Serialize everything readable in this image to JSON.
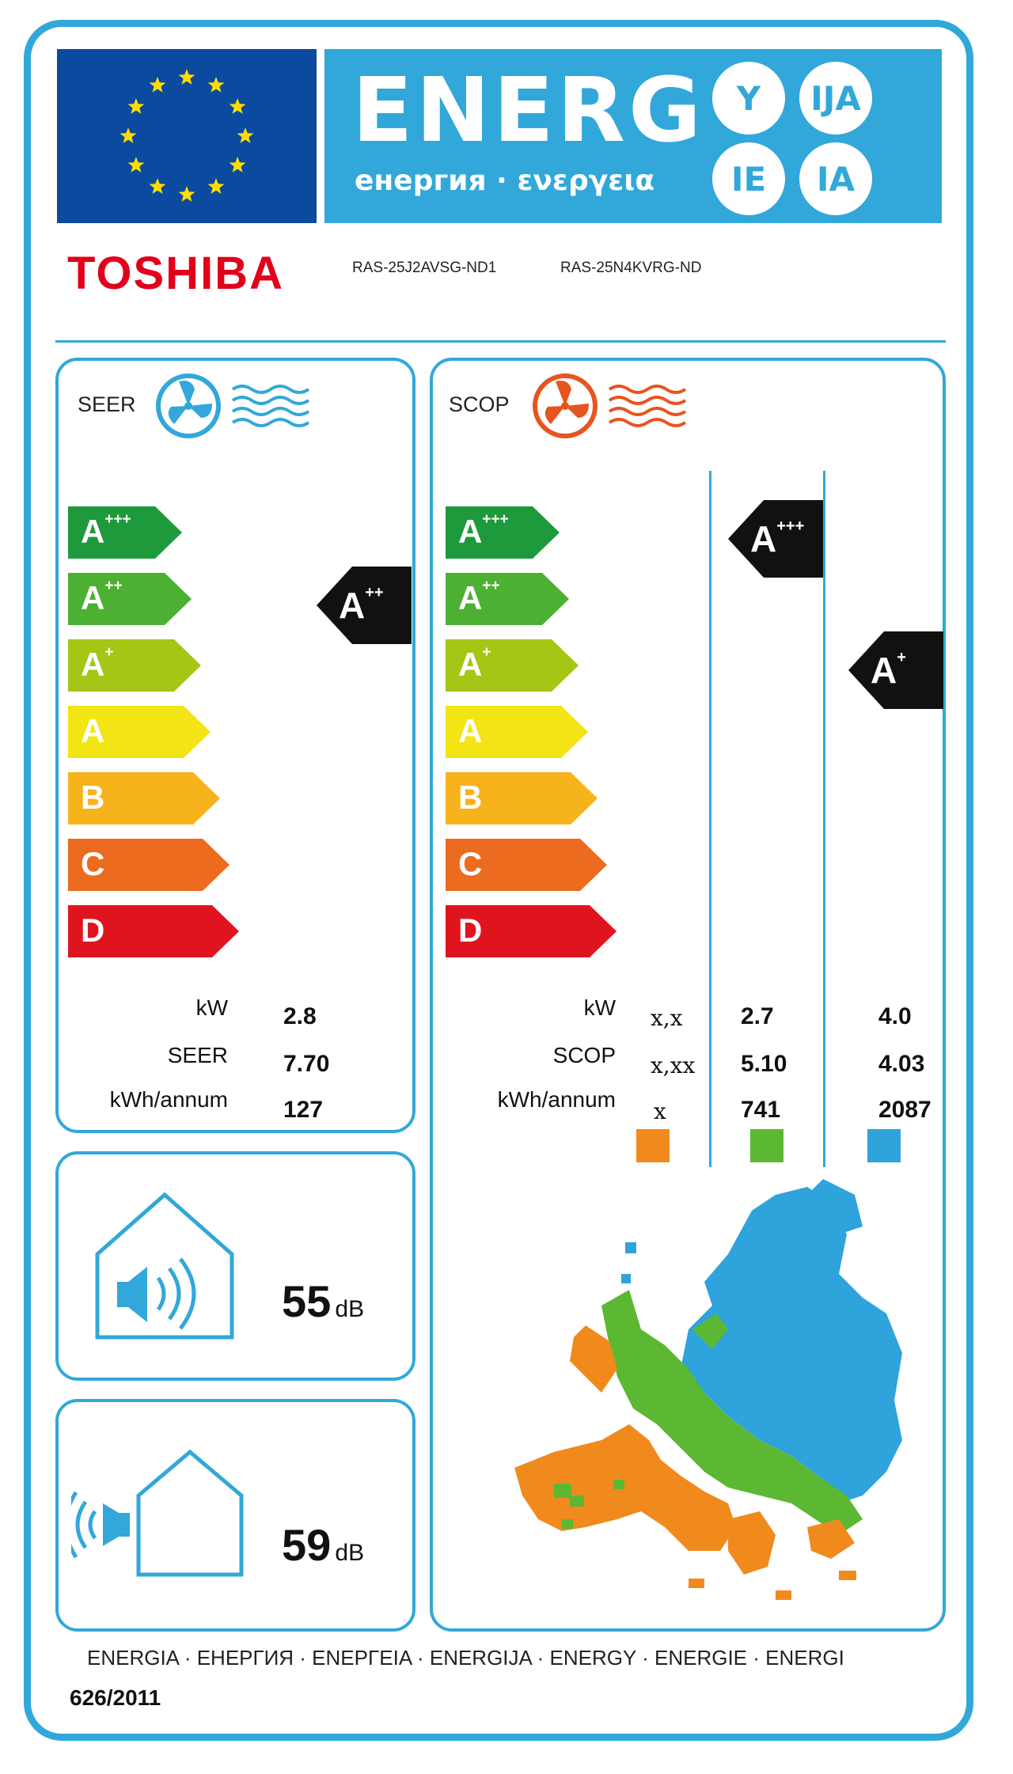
{
  "header": {
    "energy_word": "ENERG",
    "energy_sub": "енергия · ενεργεια",
    "suffixes": [
      "Y",
      "IJA",
      "IE",
      "IA"
    ],
    "eu_flag_color": "#0b4a9e",
    "banner_color": "#31a8d9"
  },
  "supplier": {
    "brand": "TOSHIBA",
    "model_indoor": "RAS-25J2AVSG-ND1",
    "model_outdoor": "RAS-25N4KVRG-ND"
  },
  "scale": [
    {
      "letter": "A",
      "plus": "+++",
      "color": "#1e9a3c"
    },
    {
      "letter": "A",
      "plus": "++",
      "color": "#4cb033"
    },
    {
      "letter": "A",
      "plus": "+",
      "color": "#a4c615"
    },
    {
      "letter": "A",
      "plus": "",
      "color": "#f2e415"
    },
    {
      "letter": "B",
      "plus": "",
      "color": "#f7b31b"
    },
    {
      "letter": "C",
      "plus": "",
      "color": "#ec6b1f"
    },
    {
      "letter": "D",
      "plus": "",
      "color": "#e0141e"
    }
  ],
  "seer": {
    "label": "SEER",
    "class_letter": "A",
    "class_plus": "++",
    "rows": [
      {
        "label": "kW",
        "value": "2.8"
      },
      {
        "label": "SEER",
        "value": "7.70"
      },
      {
        "label": "kWh/annum",
        "value": "127"
      }
    ]
  },
  "scop": {
    "label": "SCOP",
    "average_class": {
      "letter": "A",
      "plus": "+++"
    },
    "colder_class": {
      "letter": "A",
      "plus": "+"
    },
    "rows": [
      {
        "label": "kW",
        "warmer": "x,x",
        "average": "2.7",
        "colder": "4.0"
      },
      {
        "label": "SCOP",
        "warmer": "x,xx",
        "average": "5.10",
        "colder": "4.03"
      },
      {
        "label": "kWh/annum",
        "warmer": "x",
        "average": "741",
        "colder": "2087"
      }
    ],
    "zone_colors": [
      "#f08a1c",
      "#5cb833",
      "#2ea3dc"
    ]
  },
  "noise": {
    "indoor_value": "55",
    "outdoor_value": "59",
    "unit": "dB"
  },
  "footer": {
    "languages": "ENERGIA · ЕНЕРГИЯ · ΕΝΕΡΓΕΙΑ · ENERGIJA · ENERGY · ENERGIE · ENERGI",
    "regulation": "626/2011"
  }
}
